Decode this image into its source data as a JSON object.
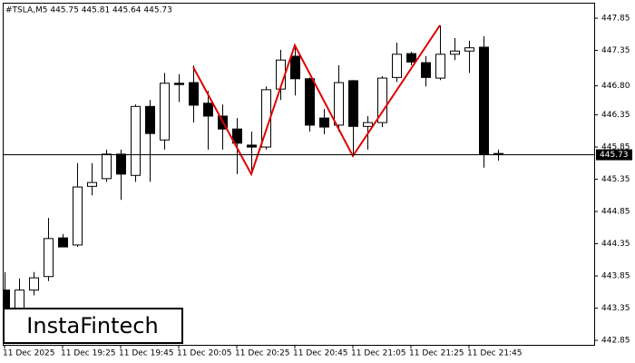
{
  "chart_data": {
    "type": "candlestick",
    "title": "#TSLA,M5  445.75 445.81 445.64 445.73",
    "watermark": "InstaFintech",
    "categories": [
      "11 Dec 2025",
      null,
      null,
      null,
      "11 Dec 19:25",
      null,
      null,
      null,
      "11 Dec 19:45",
      null,
      null,
      null,
      "11 Dec 20:05",
      null,
      null,
      null,
      "11 Dec 20:25",
      null,
      null,
      null,
      "11 Dec 20:45",
      null,
      null,
      null,
      "11 Dec 21:05",
      null,
      null,
      null,
      "11 Dec 21:25",
      null,
      null,
      null,
      "11 Dec 21:45",
      null,
      null
    ],
    "open": [
      443.63,
      443.34,
      443.63,
      443.84,
      444.44,
      444.33,
      445.24,
      445.36,
      445.74,
      445.41,
      446.48,
      445.96,
      446.84,
      446.85,
      446.53,
      446.33,
      446.13,
      445.88,
      445.85,
      446.75,
      447.26,
      446.91,
      446.3,
      446.19,
      446.88,
      446.17,
      446.23,
      446.93,
      447.3,
      447.16,
      446.92,
      447.29,
      447.34,
      447.4,
      445.75
    ],
    "high": [
      443.91,
      443.81,
      443.91,
      444.75,
      444.5,
      445.6,
      445.6,
      445.81,
      445.81,
      446.51,
      446.58,
      447.0,
      446.98,
      447.12,
      446.72,
      446.51,
      446.3,
      446.09,
      446.79,
      447.36,
      447.43,
      446.93,
      446.44,
      447.12,
      446.89,
      446.33,
      446.95,
      447.47,
      447.33,
      447.26,
      447.74,
      447.54,
      447.5,
      447.57,
      445.81
    ],
    "low": [
      443.27,
      443.27,
      443.55,
      443.77,
      444.3,
      444.3,
      445.1,
      445.31,
      445.03,
      445.31,
      445.31,
      445.81,
      446.55,
      446.23,
      445.81,
      445.81,
      445.43,
      445.46,
      445.81,
      446.58,
      446.65,
      446.09,
      446.05,
      446.09,
      445.74,
      445.81,
      446.16,
      446.86,
      447.12,
      446.79,
      446.89,
      447.2,
      447.0,
      445.53,
      445.64
    ],
    "close": [
      443.34,
      443.63,
      443.82,
      444.43,
      444.3,
      445.23,
      445.3,
      445.74,
      445.43,
      446.48,
      446.06,
      446.84,
      446.82,
      446.5,
      446.33,
      446.13,
      445.91,
      445.85,
      446.74,
      447.2,
      446.91,
      446.19,
      446.16,
      446.85,
      446.17,
      446.23,
      446.92,
      447.29,
      447.17,
      446.93,
      447.29,
      447.34,
      447.39,
      445.73,
      445.73
    ],
    "up_color": "#ffffff",
    "down_color": "#000000",
    "current_price": 445.73,
    "pattern": {
      "color": "#e00000",
      "index": [
        13,
        17,
        20,
        24,
        30
      ],
      "values": [
        447.09,
        445.43,
        447.43,
        445.71,
        447.74
      ]
    },
    "ylim": [
      442.78,
      448.09
    ],
    "yticks": [
      442.85,
      443.35,
      443.85,
      444.35,
      444.85,
      445.35,
      445.85,
      446.35,
      {
        "value": 446.8,
        "label": "446.80"
      },
      447.35,
      447.85
    ]
  }
}
